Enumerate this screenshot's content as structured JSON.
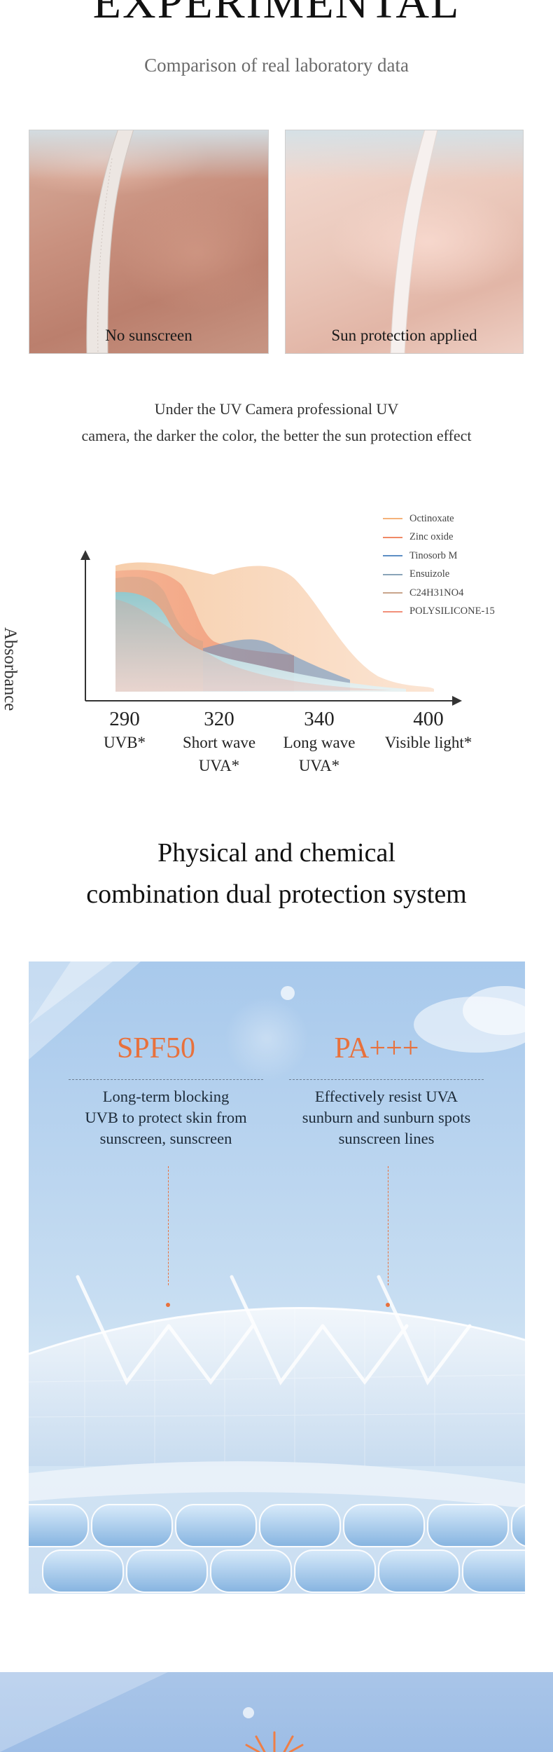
{
  "header": {
    "title": "EXPERIMENTAL",
    "subtitle": "Comparison of real laboratory data"
  },
  "comparison": {
    "left_caption": "No sunscreen",
    "right_caption": "Sun protection applied"
  },
  "uv_note": {
    "line1": "Under the UV Camera professional UV",
    "line2": "camera, the darker the color, the better the sun protection effect"
  },
  "chart_data": {
    "type": "area",
    "ylabel": "Absorbance",
    "xlabel": "",
    "x_ticks": [
      {
        "value": "290",
        "caption_lines": [
          "UVB*"
        ]
      },
      {
        "value": "320",
        "caption_lines": [
          "Short wave",
          "UVA*"
        ]
      },
      {
        "value": "340",
        "caption_lines": [
          "Long wave",
          "UVA*"
        ]
      },
      {
        "value": "400",
        "caption_lines": [
          "Visible light*"
        ]
      }
    ],
    "legend_placement": "top-right",
    "grid": false,
    "series": [
      {
        "name": "Octinoxate",
        "color": "#f5b27a"
      },
      {
        "name": "Zinc oxide",
        "color": "#f08a66"
      },
      {
        "name": "Tinosorb M",
        "color": "#5d8fc4"
      },
      {
        "name": "Ensuizole",
        "color": "#8aa4b8"
      },
      {
        "name": "C24H31NO4",
        "color": "#c9a58c"
      },
      {
        "name": "POLYSILICONE-15",
        "color": "#f2907a"
      }
    ]
  },
  "section": {
    "title_line1": "Physical and chemical",
    "title_line2": "combination dual protection system"
  },
  "protection": {
    "spf": {
      "label": "SPF50",
      "desc_lines": [
        "Long-term blocking",
        "UVB to protect skin from",
        "sunscreen, sunscreen"
      ]
    },
    "pa": {
      "label": "PA+++",
      "desc_lines": [
        "Effectively resist UVA",
        "sunburn and sunburn spots",
        "sunscreen lines"
      ]
    },
    "accent_color": "#e8713c"
  }
}
